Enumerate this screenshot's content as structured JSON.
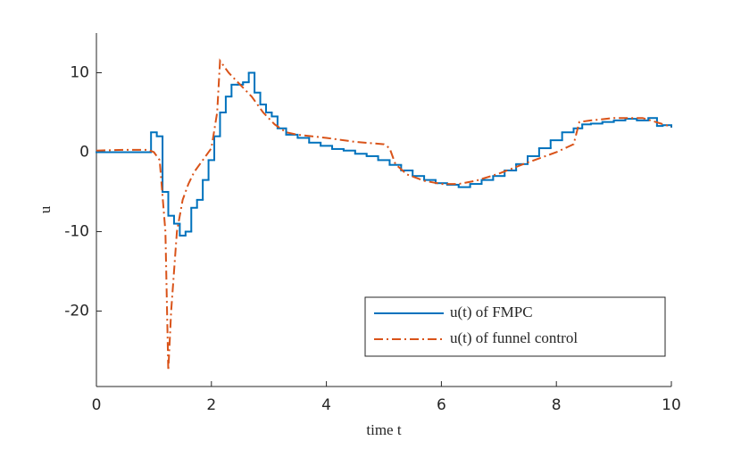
{
  "chart_data": {
    "type": "line",
    "xlabel": "time t",
    "ylabel": "u",
    "xlim": [
      0,
      10
    ],
    "ylim": [
      -29.5,
      15
    ],
    "xticks": [
      0,
      2,
      4,
      6,
      8,
      10
    ],
    "yticks": [
      -20,
      -10,
      0,
      10
    ],
    "legend": "southeast",
    "series": [
      {
        "name": "u(t) of FMPC",
        "color": "#0072bd",
        "style": "stairs",
        "x": [
          0,
          0.95,
          1.05,
          1.15,
          1.25,
          1.35,
          1.45,
          1.55,
          1.65,
          1.75,
          1.85,
          1.95,
          2.05,
          2.15,
          2.25,
          2.35,
          2.45,
          2.55,
          2.65,
          2.75,
          2.85,
          2.95,
          3.05,
          3.15,
          3.3,
          3.5,
          3.7,
          3.9,
          4.1,
          4.3,
          4.5,
          4.7,
          4.9,
          5.1,
          5.3,
          5.5,
          5.7,
          5.9,
          6.1,
          6.3,
          6.5,
          6.7,
          6.9,
          7.1,
          7.3,
          7.5,
          7.7,
          7.9,
          8.1,
          8.3,
          8.45,
          8.6,
          8.8,
          9.0,
          9.2,
          9.4,
          9.6,
          9.75,
          9.85,
          10
        ],
        "values": [
          0,
          2.5,
          2,
          -5,
          -8,
          -9,
          -10.5,
          -10,
          -7,
          -6,
          -3.5,
          -1,
          2,
          5,
          7,
          8.5,
          8.5,
          8.8,
          10,
          7.5,
          6,
          5,
          4.5,
          3,
          2.2,
          1.8,
          1.2,
          0.8,
          0.4,
          0.2,
          -0.2,
          -0.5,
          -1,
          -1.6,
          -2.3,
          -3,
          -3.5,
          -3.9,
          -4.1,
          -4.4,
          -4,
          -3.5,
          -3,
          -2.3,
          -1.5,
          -0.5,
          0.5,
          1.5,
          2.5,
          3,
          3.5,
          3.6,
          3.8,
          4,
          4.2,
          4,
          4.3,
          3.3,
          3.4,
          3.2
        ]
      },
      {
        "name": "u(t) of funnel control",
        "color": "#d95319",
        "style": "dashdot",
        "x": [
          0,
          0.5,
          0.9,
          1.0,
          1.1,
          1.2,
          1.25,
          1.3,
          1.4,
          1.5,
          1.6,
          1.7,
          1.8,
          1.9,
          2.0,
          2.1,
          2.15,
          2.3,
          2.5,
          2.7,
          2.9,
          3.1,
          3.3,
          3.5,
          4.0,
          4.5,
          5.0,
          5.1,
          5.2,
          5.4,
          5.7,
          6.0,
          6.3,
          6.6,
          7.0,
          7.5,
          8.0,
          8.3,
          8.4,
          8.6,
          9.0,
          9.5,
          10
        ],
        "values": [
          0.2,
          0.3,
          0.3,
          0,
          -1,
          -10,
          -27.5,
          -20,
          -10,
          -6,
          -4,
          -2.5,
          -1.5,
          -0.5,
          0.5,
          5,
          11.5,
          10,
          8.5,
          7,
          5,
          3.5,
          2.5,
          2.2,
          1.8,
          1.3,
          1,
          0.5,
          -1.5,
          -2.8,
          -3.6,
          -4,
          -4,
          -3.6,
          -2.7,
          -1.3,
          0,
          1,
          3.8,
          4,
          4.3,
          4.3,
          3.2
        ]
      }
    ]
  }
}
